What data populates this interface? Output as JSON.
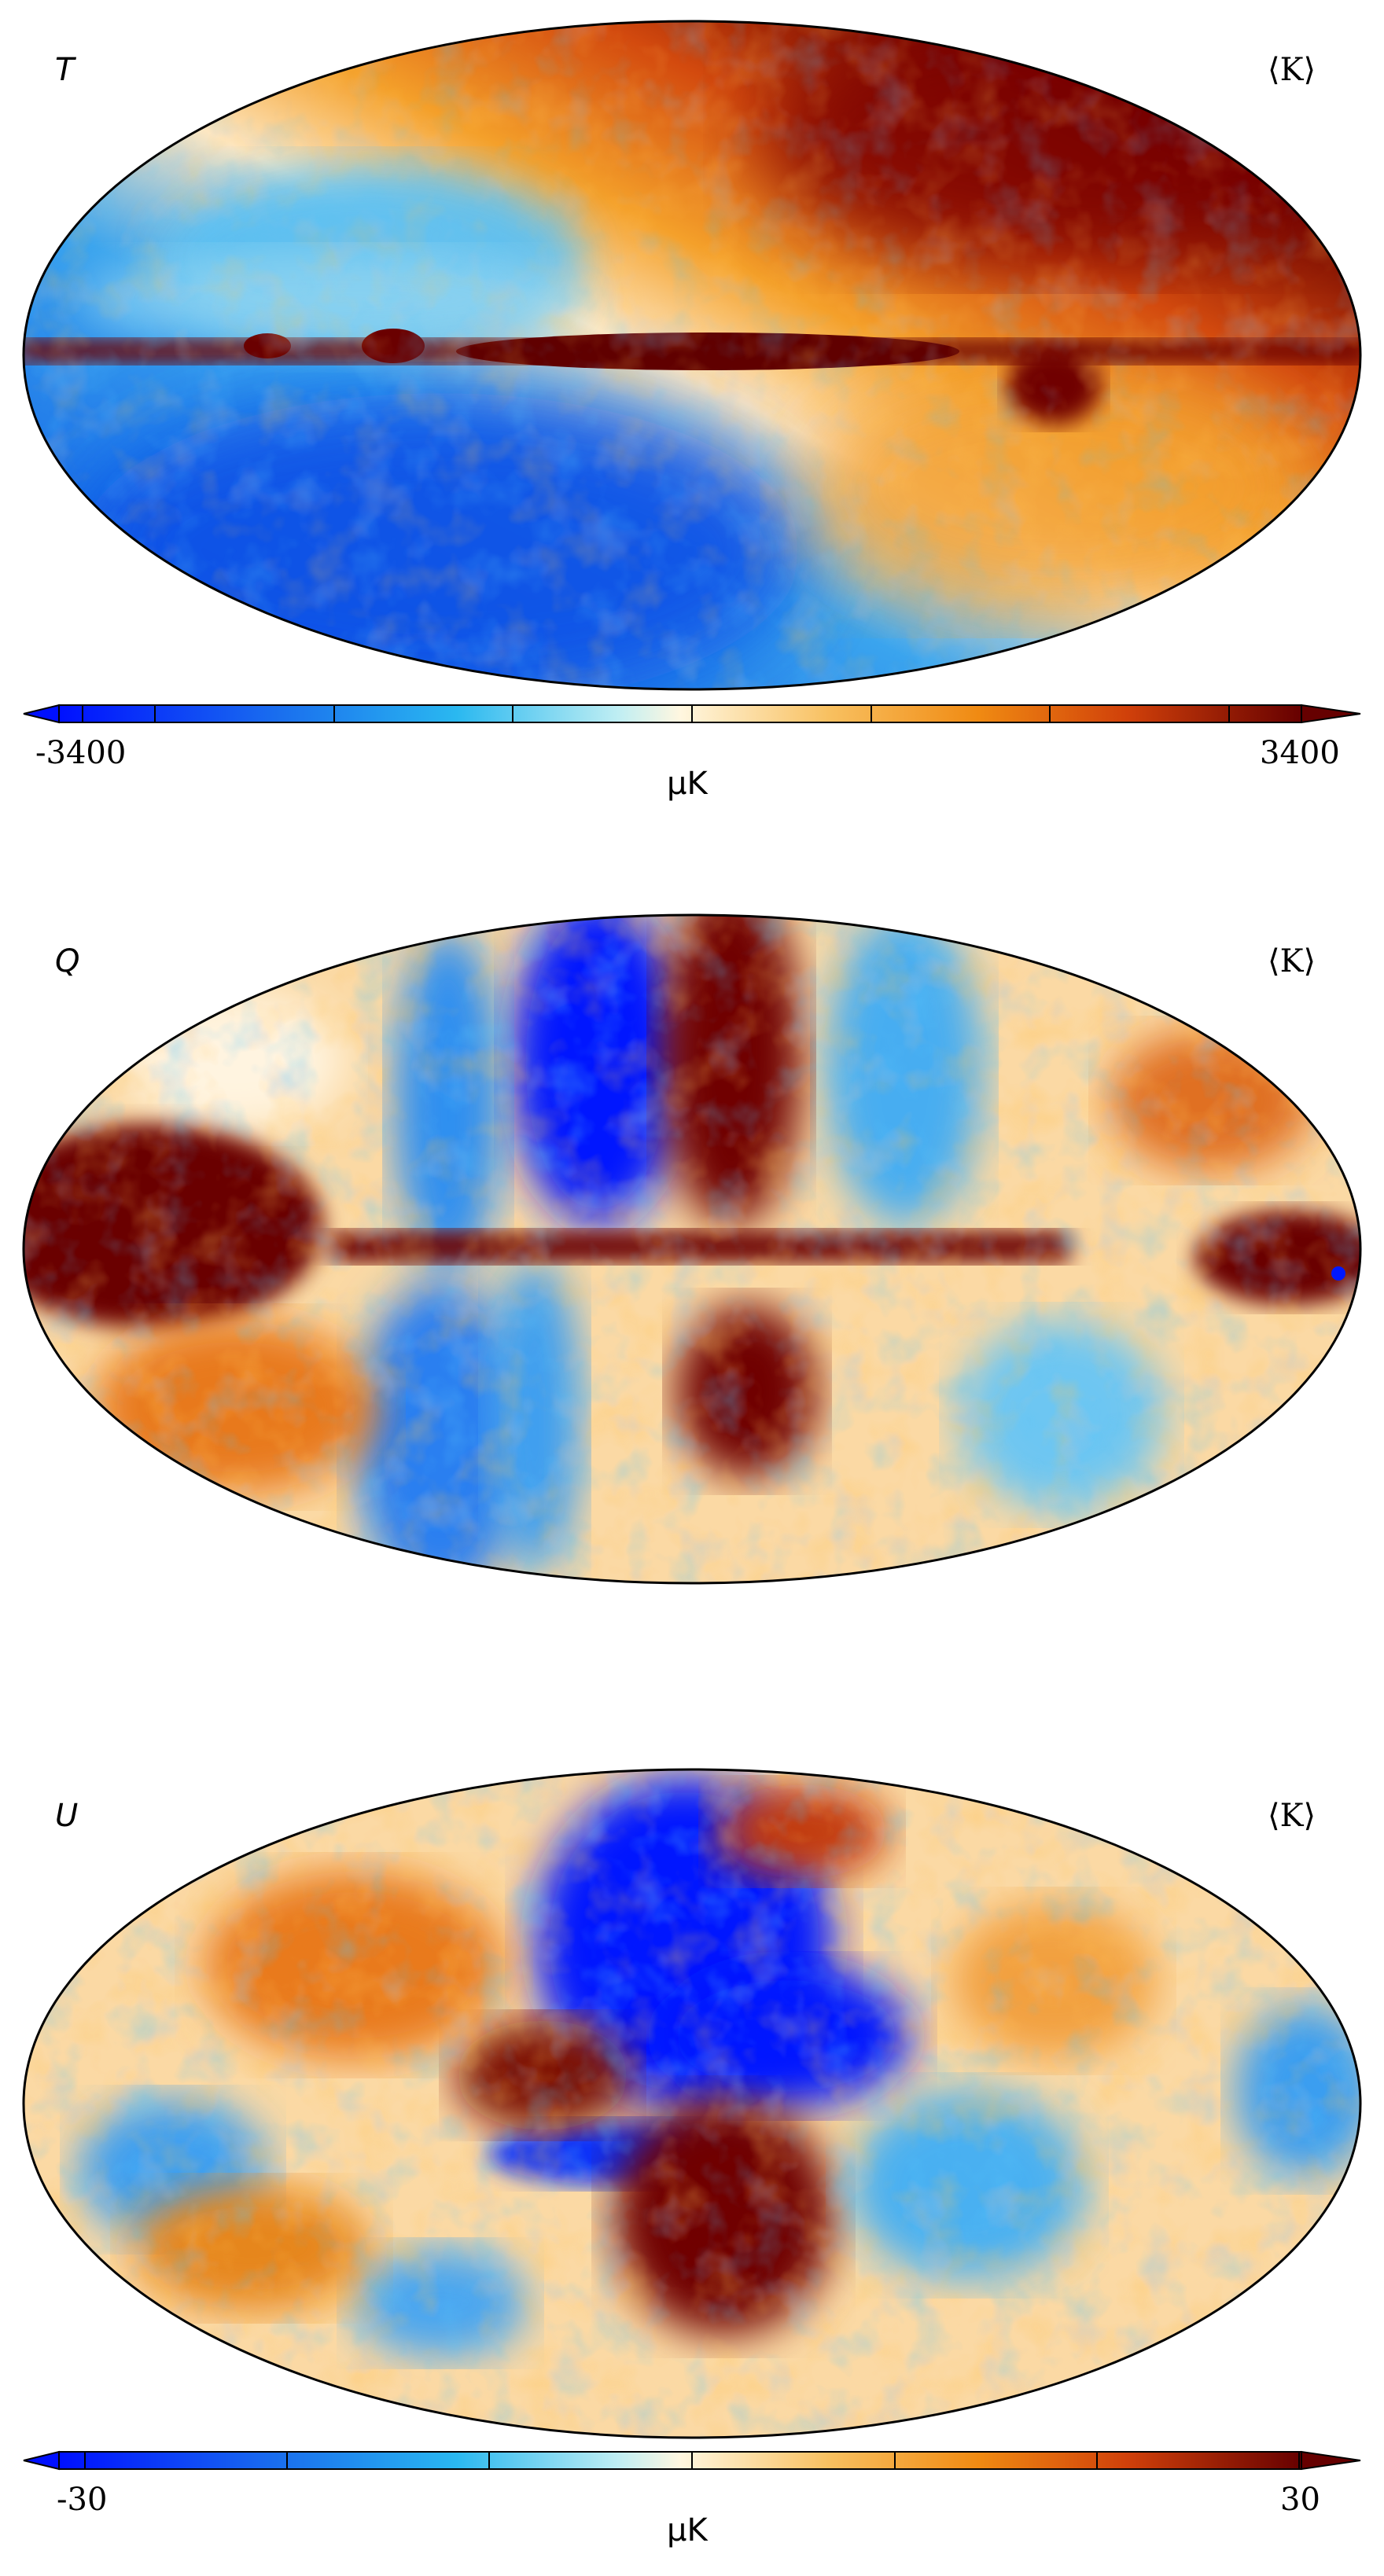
{
  "maps": [
    {
      "id": "T",
      "panel_label": "T",
      "freq_label": "⟨K⟩",
      "colorbar": {
        "min": "-3400",
        "max": "3400",
        "unit": "μK"
      }
    },
    {
      "id": "Q",
      "panel_label": "Q",
      "freq_label": "⟨K⟩"
    },
    {
      "id": "U",
      "panel_label": "U",
      "freq_label": "⟨K⟩",
      "colorbar": {
        "min": "-30",
        "max": "30",
        "unit": "μK"
      }
    }
  ],
  "colors": {
    "deep_blue": "#0010ff",
    "mid_blue": "#1e8ff0",
    "light_blue": "#72d3f5",
    "cream": "#fff3d2",
    "orange": "#f5a020",
    "red_orange": "#e05a10",
    "dark_red": "#6a0000"
  }
}
